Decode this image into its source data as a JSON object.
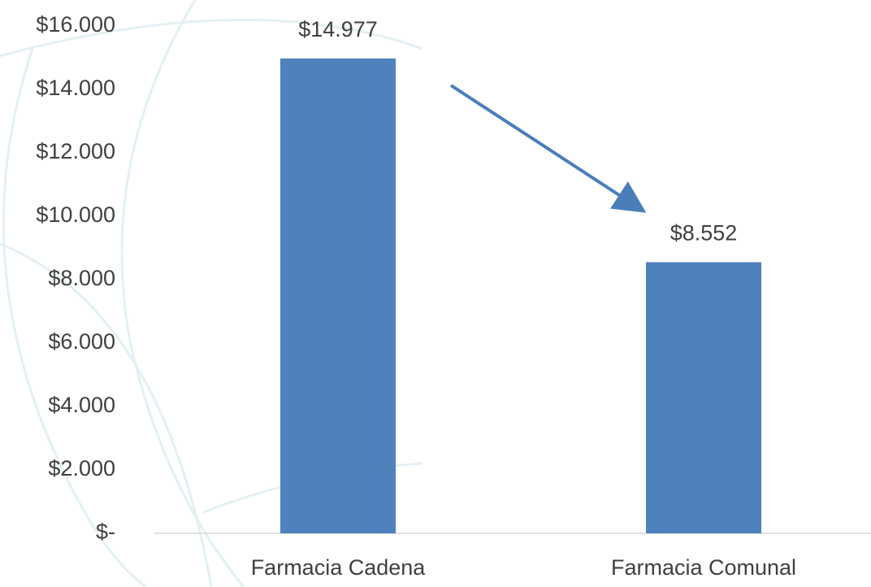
{
  "chart_data": {
    "type": "bar",
    "categories": [
      "Farmacia Cadena",
      "Farmacia Comunal"
    ],
    "values": [
      14977,
      8552
    ],
    "value_labels": [
      "$14.977",
      "$8.552"
    ],
    "color": "#4f81bd",
    "ylim": [
      0,
      16000
    ],
    "yticks": [
      {
        "value": 0,
        "label": "$-"
      },
      {
        "value": 2000,
        "label": "$2.000"
      },
      {
        "value": 4000,
        "label": "$4.000"
      },
      {
        "value": 6000,
        "label": "$6.000"
      },
      {
        "value": 8000,
        "label": "$8.000"
      },
      {
        "value": 10000,
        "label": "$10.000"
      },
      {
        "value": 12000,
        "label": "$12.000"
      },
      {
        "value": 14000,
        "label": "$14.000"
      },
      {
        "value": 16000,
        "label": "$16.000"
      }
    ],
    "grid": false
  }
}
